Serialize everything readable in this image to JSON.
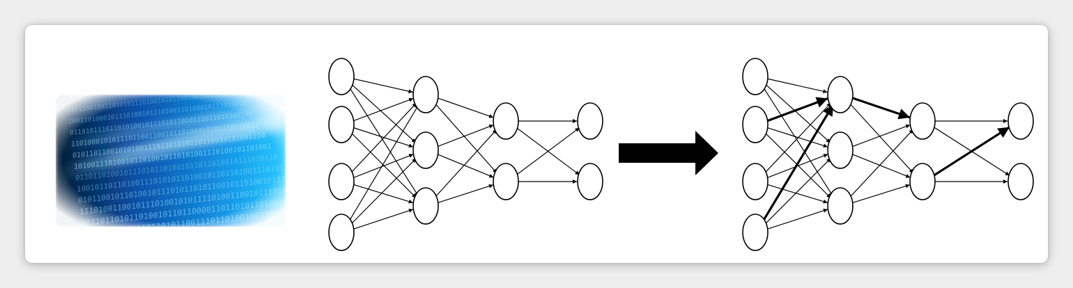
{
  "figure": {
    "image": {
      "description_icon": "binary-data-stream-image",
      "accent_colors": [
        "#001a33",
        "#0a5fd8",
        "#29c8ff",
        "#bff3ff"
      ],
      "digit_rows": [
        "0101100100110101011101001",
        "1001101000101110100101110",
        "0110101110110101001011101",
        "1101000101011101100110010",
        "0101101100101010011101101",
        "1010011101001011010010110",
        "0110110100101110101101001",
        "1001011011010011101010110",
        "0101100101101001011101011",
        "1110100110010111010010101",
        "0011011010110100101101100",
        "1011010010011011010110011"
      ]
    },
    "network_before": {
      "layers": [
        4,
        3,
        2,
        2
      ],
      "emphasized_edges": []
    },
    "transition_arrow": {
      "icon": "right-arrow-icon"
    },
    "network_after": {
      "layers": [
        4,
        3,
        2,
        2
      ],
      "emphasized_edges": [
        [
          0,
          0,
          0,
          2
        ],
        [
          0,
          1,
          1,
          0
        ],
        [
          0,
          3,
          1,
          0
        ],
        [
          1,
          0,
          2,
          0
        ],
        [
          2,
          1,
          3,
          0
        ]
      ]
    }
  }
}
